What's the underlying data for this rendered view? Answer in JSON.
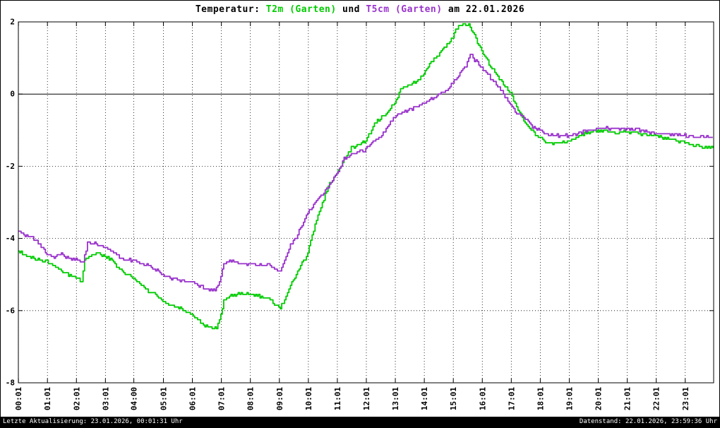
{
  "title": {
    "prefix": "Temperatur: ",
    "series1": "T2m (Garten)",
    "mid": " und ",
    "series2": "T5cm (Garten)",
    "suffix": " am 22.01.2026"
  },
  "footer": {
    "left": "Letzte Aktualisierung: 23.01.2026, 00:01:31 Uhr",
    "right": "Datenstand: 22.01.2026, 23:59:36 Uhr"
  },
  "colors": {
    "t2m_green": "#00cc00",
    "t5cm_purple": "#9932cc",
    "axis": "#000000",
    "background": "#ffffff",
    "footer_bg": "#000000",
    "footer_text": "#ffffff"
  },
  "chart_data": {
    "type": "line",
    "title": "Temperatur: T2m (Garten) und T5cm (Garten) am 22.01.2026",
    "xlabel": "",
    "ylabel": "",
    "grid": true,
    "legend_position": "none",
    "xlim": [
      0.0167,
      24
    ],
    "ylim": [
      -8,
      2
    ],
    "ytick_values": [
      2,
      0,
      -2,
      -4,
      -6,
      -8
    ],
    "ytick_labels": [
      "2",
      "0",
      "-2",
      "-4",
      "-6",
      "-8"
    ],
    "xtick_hours": [
      0.02,
      1.02,
      2.02,
      3.02,
      4.0,
      5.02,
      6.02,
      7.02,
      8.02,
      9.02,
      10.02,
      11.02,
      12.02,
      13.02,
      14.02,
      15.02,
      16.02,
      17.02,
      18.02,
      19.02,
      20.02,
      21.02,
      22.02,
      23.02
    ],
    "xtick_labels": [
      "00:01",
      "01:01",
      "02:01",
      "03:01",
      "04:00",
      "05:01",
      "06:01",
      "07:01",
      "08:01",
      "09:01",
      "10:01",
      "11:01",
      "12:01",
      "13:01",
      "14:01",
      "15:01",
      "16:01",
      "17:01",
      "18:01",
      "19:01",
      "20:01",
      "21:01",
      "22:01",
      "23:01"
    ],
    "series": [
      {
        "name": "T2m (Garten)",
        "color": "#00cc00",
        "points": [
          [
            0.02,
            -4.35
          ],
          [
            0.25,
            -4.45
          ],
          [
            0.5,
            -4.55
          ],
          [
            0.75,
            -4.6
          ],
          [
            1.0,
            -4.65
          ],
          [
            1.25,
            -4.75
          ],
          [
            1.5,
            -4.9
          ],
          [
            1.75,
            -5.0
          ],
          [
            2.0,
            -5.1
          ],
          [
            2.2,
            -5.2
          ],
          [
            2.3,
            -4.6
          ],
          [
            2.5,
            -4.45
          ],
          [
            2.75,
            -4.4
          ],
          [
            3.0,
            -4.5
          ],
          [
            3.25,
            -4.6
          ],
          [
            3.5,
            -4.85
          ],
          [
            3.75,
            -5.0
          ],
          [
            4.0,
            -5.1
          ],
          [
            4.25,
            -5.3
          ],
          [
            4.5,
            -5.45
          ],
          [
            4.75,
            -5.55
          ],
          [
            5.0,
            -5.75
          ],
          [
            5.25,
            -5.85
          ],
          [
            5.5,
            -5.9
          ],
          [
            5.75,
            -6.0
          ],
          [
            6.0,
            -6.1
          ],
          [
            6.25,
            -6.3
          ],
          [
            6.5,
            -6.45
          ],
          [
            6.85,
            -6.5
          ],
          [
            7.0,
            -6.1
          ],
          [
            7.1,
            -5.7
          ],
          [
            7.3,
            -5.6
          ],
          [
            7.6,
            -5.55
          ],
          [
            8.0,
            -5.55
          ],
          [
            8.3,
            -5.6
          ],
          [
            8.6,
            -5.65
          ],
          [
            8.85,
            -5.8
          ],
          [
            9.05,
            -5.9
          ],
          [
            9.2,
            -5.7
          ],
          [
            9.4,
            -5.3
          ],
          [
            9.6,
            -5.0
          ],
          [
            9.8,
            -4.7
          ],
          [
            10.0,
            -4.4
          ],
          [
            10.25,
            -3.6
          ],
          [
            10.5,
            -3.0
          ],
          [
            10.75,
            -2.5
          ],
          [
            11.0,
            -2.2
          ],
          [
            11.25,
            -1.8
          ],
          [
            11.5,
            -1.5
          ],
          [
            11.75,
            -1.4
          ],
          [
            12.0,
            -1.3
          ],
          [
            12.25,
            -0.9
          ],
          [
            12.5,
            -0.65
          ],
          [
            12.75,
            -0.5
          ],
          [
            13.0,
            -0.25
          ],
          [
            13.2,
            0.15
          ],
          [
            13.5,
            0.25
          ],
          [
            13.75,
            0.35
          ],
          [
            14.0,
            0.55
          ],
          [
            14.25,
            0.9
          ],
          [
            14.5,
            1.1
          ],
          [
            14.75,
            1.3
          ],
          [
            15.0,
            1.6
          ],
          [
            15.2,
            1.9
          ],
          [
            15.55,
            1.9
          ],
          [
            15.75,
            1.6
          ],
          [
            16.0,
            1.2
          ],
          [
            16.25,
            0.85
          ],
          [
            16.5,
            0.55
          ],
          [
            16.75,
            0.25
          ],
          [
            17.0,
            0.0
          ],
          [
            17.25,
            -0.45
          ],
          [
            17.5,
            -0.8
          ],
          [
            17.75,
            -1.05
          ],
          [
            18.0,
            -1.2
          ],
          [
            18.25,
            -1.35
          ],
          [
            18.5,
            -1.4
          ],
          [
            18.75,
            -1.35
          ],
          [
            19.0,
            -1.3
          ],
          [
            19.25,
            -1.2
          ],
          [
            19.5,
            -1.1
          ],
          [
            19.75,
            -1.05
          ],
          [
            20.0,
            -1.0
          ],
          [
            20.5,
            -1.05
          ],
          [
            21.0,
            -1.05
          ],
          [
            21.5,
            -1.1
          ],
          [
            22.0,
            -1.15
          ],
          [
            22.5,
            -1.25
          ],
          [
            23.0,
            -1.35
          ],
          [
            23.5,
            -1.45
          ],
          [
            23.97,
            -1.5
          ]
        ]
      },
      {
        "name": "T5cm (Garten)",
        "color": "#9932cc",
        "points": [
          [
            0.02,
            -3.8
          ],
          [
            0.25,
            -3.9
          ],
          [
            0.5,
            -4.0
          ],
          [
            0.75,
            -4.15
          ],
          [
            1.0,
            -4.45
          ],
          [
            1.25,
            -4.5
          ],
          [
            1.5,
            -4.45
          ],
          [
            1.75,
            -4.55
          ],
          [
            2.0,
            -4.6
          ],
          [
            2.25,
            -4.65
          ],
          [
            2.4,
            -4.15
          ],
          [
            2.6,
            -4.1
          ],
          [
            2.8,
            -4.2
          ],
          [
            3.0,
            -4.25
          ],
          [
            3.25,
            -4.35
          ],
          [
            3.5,
            -4.5
          ],
          [
            3.75,
            -4.6
          ],
          [
            4.0,
            -4.6
          ],
          [
            4.25,
            -4.7
          ],
          [
            4.5,
            -4.75
          ],
          [
            4.75,
            -4.85
          ],
          [
            5.0,
            -5.0
          ],
          [
            5.25,
            -5.1
          ],
          [
            5.5,
            -5.15
          ],
          [
            5.75,
            -5.2
          ],
          [
            6.0,
            -5.2
          ],
          [
            6.25,
            -5.3
          ],
          [
            6.5,
            -5.4
          ],
          [
            6.8,
            -5.45
          ],
          [
            6.95,
            -5.2
          ],
          [
            7.1,
            -4.7
          ],
          [
            7.3,
            -4.6
          ],
          [
            7.6,
            -4.7
          ],
          [
            8.0,
            -4.7
          ],
          [
            8.3,
            -4.75
          ],
          [
            8.6,
            -4.7
          ],
          [
            8.85,
            -4.85
          ],
          [
            9.05,
            -4.9
          ],
          [
            9.2,
            -4.6
          ],
          [
            9.4,
            -4.2
          ],
          [
            9.6,
            -4.0
          ],
          [
            9.8,
            -3.6
          ],
          [
            10.0,
            -3.3
          ],
          [
            10.25,
            -3.0
          ],
          [
            10.5,
            -2.8
          ],
          [
            10.75,
            -2.5
          ],
          [
            11.0,
            -2.2
          ],
          [
            11.25,
            -1.8
          ],
          [
            11.5,
            -1.65
          ],
          [
            11.75,
            -1.6
          ],
          [
            12.0,
            -1.55
          ],
          [
            12.25,
            -1.3
          ],
          [
            12.5,
            -1.2
          ],
          [
            12.75,
            -0.9
          ],
          [
            13.0,
            -0.65
          ],
          [
            13.25,
            -0.5
          ],
          [
            13.5,
            -0.45
          ],
          [
            13.75,
            -0.35
          ],
          [
            14.0,
            -0.25
          ],
          [
            14.25,
            -0.15
          ],
          [
            14.5,
            -0.05
          ],
          [
            14.75,
            0.1
          ],
          [
            15.0,
            0.3
          ],
          [
            15.25,
            0.55
          ],
          [
            15.45,
            0.8
          ],
          [
            15.6,
            1.1
          ],
          [
            15.75,
            0.95
          ],
          [
            16.0,
            0.75
          ],
          [
            16.25,
            0.5
          ],
          [
            16.5,
            0.25
          ],
          [
            16.75,
            0.0
          ],
          [
            17.0,
            -0.3
          ],
          [
            17.25,
            -0.55
          ],
          [
            17.5,
            -0.7
          ],
          [
            17.75,
            -0.9
          ],
          [
            18.0,
            -1.0
          ],
          [
            18.25,
            -1.1
          ],
          [
            18.5,
            -1.15
          ],
          [
            19.0,
            -1.15
          ],
          [
            19.25,
            -1.1
          ],
          [
            19.5,
            -1.05
          ],
          [
            20.0,
            -0.95
          ],
          [
            20.5,
            -0.95
          ],
          [
            21.0,
            -0.95
          ],
          [
            21.5,
            -1.0
          ],
          [
            22.0,
            -1.1
          ],
          [
            22.5,
            -1.1
          ],
          [
            23.0,
            -1.15
          ],
          [
            23.5,
            -1.2
          ],
          [
            23.97,
            -1.2
          ]
        ]
      }
    ]
  }
}
